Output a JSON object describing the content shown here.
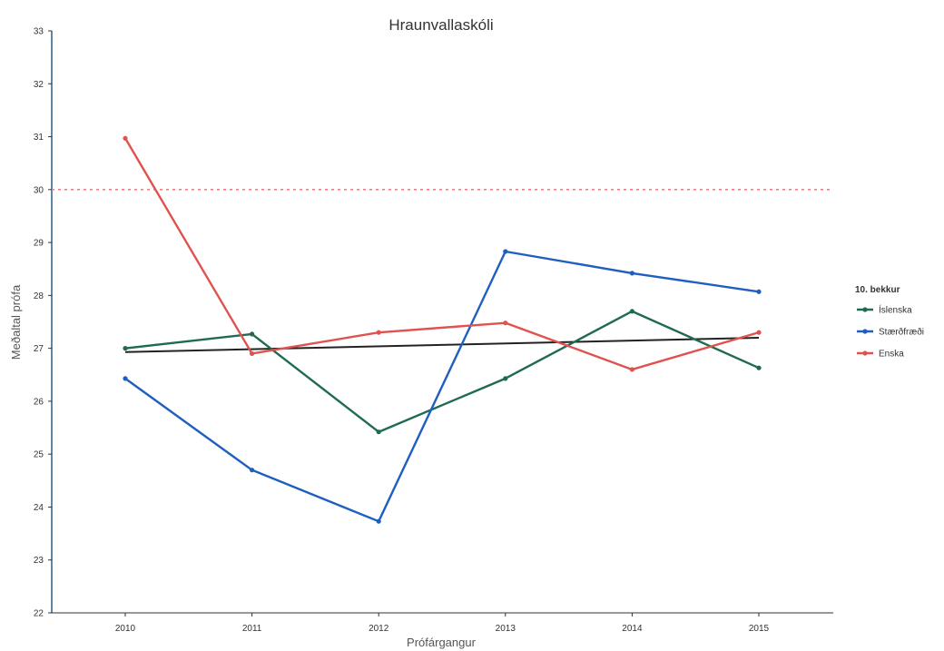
{
  "chart_data": {
    "type": "line",
    "title": "Hraunvallaskóli",
    "xlabel": "Prófárgangur",
    "ylabel": "Meðaltal prófa",
    "categories": [
      "2010",
      "2011",
      "2012",
      "2013",
      "2014",
      "2015"
    ],
    "ylim": [
      22,
      33
    ],
    "yticks": [
      22,
      23,
      24,
      25,
      26,
      27,
      28,
      29,
      30,
      31,
      32,
      33
    ],
    "grid": false,
    "legend": {
      "title": "10. bekkur",
      "position": "right"
    },
    "series": [
      {
        "name": "Íslenska",
        "color": "#1f6b52",
        "values": [
          27.0,
          27.27,
          25.42,
          26.43,
          27.7,
          26.63
        ]
      },
      {
        "name": "Stærðfræði",
        "color": "#1f5fbf",
        "values": [
          26.43,
          24.7,
          23.73,
          28.83,
          28.42,
          28.07
        ]
      },
      {
        "name": "Enska",
        "color": "#e0524f",
        "values": [
          30.97,
          26.9,
          27.3,
          27.48,
          26.6,
          27.3
        ]
      }
    ],
    "reference_lines": [
      {
        "kind": "horizontal",
        "value": 30.0,
        "style": "dotted",
        "color": "#f08080"
      },
      {
        "kind": "trend",
        "from": {
          "x": "2010",
          "y": 26.93
        },
        "to": {
          "x": "2015",
          "y": 27.2
        },
        "color": "#222222"
      }
    ]
  }
}
